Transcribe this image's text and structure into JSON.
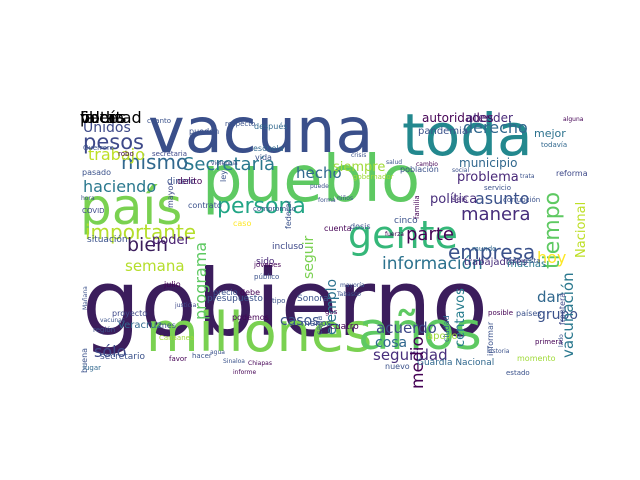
{
  "wordcloud": {
    "words": [
      {
        "text": "gobierno",
        "color": "#3b1d5c"
      },
      {
        "text": "vacuna",
        "color": "#3a4f8a"
      },
      {
        "text": "pueblo",
        "color": "#5ec962"
      },
      {
        "text": "país",
        "color": "#7ad151"
      },
      {
        "text": "toda",
        "color": "#23888e"
      },
      {
        "text": "gente",
        "color": "#35b779"
      },
      {
        "text": "millones",
        "color": "#7ad151"
      },
      {
        "text": "años",
        "color": "#5ec962"
      },
      {
        "text": "persona",
        "color": "#21a585"
      },
      {
        "text": "Secretaría",
        "color": "#2a788e"
      },
      {
        "text": "importante",
        "color": "#b5de2b"
      },
      {
        "text": "parte",
        "color": "#440154"
      },
      {
        "text": "empresa",
        "color": "#3b528b"
      },
      {
        "text": "información",
        "color": "#2c728e"
      },
      {
        "text": "tiempo",
        "color": "#5ec962"
      },
      {
        "text": "mismo",
        "color": "#31688e"
      },
      {
        "text": "pesos",
        "color": "#3e4989"
      },
      {
        "text": "trabajo",
        "color": "#bddf26"
      },
      {
        "text": "haciendo",
        "color": "#2a788e"
      },
      {
        "text": "derecho",
        "color": "#31688e"
      },
      {
        "text": "manera",
        "color": "#472d7b"
      },
      {
        "text": "problema",
        "color": "#482878"
      },
      {
        "text": "bien",
        "color": "#3b1d5c"
      },
      {
        "text": "poder",
        "color": "#481f70"
      },
      {
        "text": "semana",
        "color": "#b5de2b"
      },
      {
        "text": "hecho",
        "color": "#31688e"
      },
      {
        "text": "Unidos",
        "color": "#3e4a89"
      },
      {
        "text": "programa",
        "color": "#5ec962"
      },
      {
        "text": "seguir",
        "color": "#7ad151"
      },
      {
        "text": "acuerdo",
        "color": "#3e4989"
      },
      {
        "text": "cosa",
        "color": "#31688e"
      },
      {
        "text": "seguridad",
        "color": "#472d7b"
      },
      {
        "text": "sólo",
        "color": "#3e4989"
      },
      {
        "text": "casos",
        "color": "#3b528b"
      },
      {
        "text": "ejemplo",
        "color": "#2c728e"
      },
      {
        "text": "medio",
        "color": "#440154"
      },
      {
        "text": "hoy",
        "color": "#fde725"
      },
      {
        "text": "dar",
        "color": "#31688e"
      },
      {
        "text": "grupo",
        "color": "#3b528b"
      },
      {
        "text": "vacunación",
        "color": "#2a788e"
      },
      {
        "text": "Nacional",
        "color": "#bddf26"
      },
      {
        "text": "asunto",
        "color": "#3b528b"
      },
      {
        "text": "siempre",
        "color": "#a0da39"
      },
      {
        "text": "política",
        "color": "#472d7b"
      },
      {
        "text": "centavos",
        "color": "#287d8e"
      },
      {
        "text": "municipio",
        "color": "#31688e"
      },
      {
        "text": "mejor",
        "color": "#2c728e"
      },
      {
        "text": "autoridades",
        "color": "#440154"
      },
      {
        "text": "atender",
        "color": "#482878"
      },
      {
        "text": "pandemia",
        "color": "#3b528b"
      },
      {
        "text": "Veracruz",
        "color": "#31688e"
      },
      {
        "text": "trabajadores",
        "color": "#472d7b"
      },
      {
        "text": "apoyo",
        "color": "#a0da39"
      },
      {
        "text": "Guardia Nacional",
        "color": "#31688e"
      },
      {
        "text": "secretario",
        "color": "#3b528b"
      },
      {
        "text": "proyecto",
        "color": "#3e4989"
      },
      {
        "text": "situación",
        "color": "#3b528b"
      },
      {
        "text": "sido",
        "color": "#482878"
      },
      {
        "text": "incluso",
        "color": "#3e4989"
      },
      {
        "text": "dinero",
        "color": "#3b528b"
      },
      {
        "text": "Sonora",
        "color": "#3b528b"
      },
      {
        "text": "muchas",
        "color": "#2a788e"
      },
      {
        "text": "cuatro",
        "color": "#440154"
      },
      {
        "text": "cinco",
        "color": "#3b528b"
      },
      {
        "text": "seis",
        "color": "#482878"
      },
      {
        "text": "menos",
        "color": "#3b528b"
      },
      {
        "text": "pasado",
        "color": "#3b528b"
      },
      {
        "text": "escuela",
        "color": "#31688e"
      },
      {
        "text": "vida",
        "color": "#3b528b"
      },
      {
        "text": "después",
        "color": "#31688e"
      },
      {
        "text": "pueden",
        "color": "#3b528b"
      },
      {
        "text": "mayor",
        "color": "#3e4989"
      },
      {
        "text": "delito",
        "color": "#440154"
      },
      {
        "text": "contrato",
        "color": "#3b528b"
      },
      {
        "text": "precio",
        "color": "#3b528b"
      },
      {
        "text": "julio",
        "color": "#440154"
      },
      {
        "text": "jóvenes",
        "color": "#440154"
      },
      {
        "text": "debe",
        "color": "#440154"
      },
      {
        "text": "público",
        "color": "#3b528b"
      },
      {
        "text": "podemos",
        "color": "#440154"
      },
      {
        "text": "mes",
        "color": "#3b528b"
      },
      {
        "text": "reforma",
        "color": "#3e4989"
      },
      {
        "text": "frontera",
        "color": "#3e4989"
      },
      {
        "text": "primera",
        "color": "#440154"
      },
      {
        "text": "países",
        "color": "#3b528b"
      },
      {
        "text": "momento",
        "color": "#a0da39"
      },
      {
        "text": "nuevo",
        "color": "#3b528b"
      },
      {
        "text": "informar",
        "color": "#3b528b"
      },
      {
        "text": "dosis",
        "color": "#3b528b"
      },
      {
        "text": "cuenta",
        "color": "#440154"
      },
      {
        "text": "ciudad",
        "color": "#31688e"
      },
      {
        "text": "federal",
        "color": "#3b528b"
      },
      {
        "text": "familia",
        "color": "#440154"
      },
      {
        "text": "gobernador",
        "color": "#a0da39"
      },
      {
        "text": "población",
        "color": "#3b528b"
      },
      {
        "text": "todavía",
        "color": "#31688e"
      },
      {
        "text": "servicio",
        "color": "#3b528b"
      },
      {
        "text": "corrupción",
        "color": "#3b528b"
      },
      {
        "text": "respuesta",
        "color": "#3b528b"
      },
      {
        "text": "mundo",
        "color": "#31688e"
      },
      {
        "text": "buena",
        "color": "#3b528b"
      },
      {
        "text": "lugar",
        "color": "#31688e"
      },
      {
        "text": "presupuesto",
        "color": "#3b528b"
      },
      {
        "text": "caso",
        "color": "#fde725"
      },
      {
        "text": "gas",
        "color": "#440154"
      },
      {
        "text": "cada",
        "color": "#3b528b"
      },
      {
        "text": "COVID",
        "color": "#3e4989"
      },
      {
        "text": "tipo",
        "color": "#3b528b"
      },
      {
        "text": "compromiso",
        "color": "#3b528b"
      },
      {
        "text": "Guerrero",
        "color": "#3b528b"
      },
      {
        "text": "secretaria",
        "color": "#3e4989"
      },
      {
        "text": "respecto",
        "color": "#3b528b"
      },
      {
        "text": "cuanto",
        "color": "#3b528b"
      },
      {
        "text": "alguna",
        "color": "#440154"
      },
      {
        "text": "ley",
        "color": "#3b528b"
      },
      {
        "text": "robo",
        "color": "#440154"
      },
      {
        "text": "violencia",
        "color": "#3e4989"
      },
      {
        "text": "crisis",
        "color": "#3b528b"
      },
      {
        "text": "fuerza",
        "color": "#440154"
      },
      {
        "text": "salud",
        "color": "#3b528b"
      },
      {
        "text": "cambio",
        "color": "#440154"
      },
      {
        "text": "estado",
        "color": "#3b528b"
      },
      {
        "text": "favor",
        "color": "#440154"
      },
      {
        "text": "hacer",
        "color": "#3b528b"
      },
      {
        "text": "Chiapas",
        "color": "#440154"
      },
      {
        "text": "posible",
        "color": "#440154"
      },
      {
        "text": "Tabasco",
        "color": "#3b528b"
      },
      {
        "text": "Canaanea",
        "color": "#a0da39"
      },
      {
        "text": "justicia",
        "color": "#3e4989"
      },
      {
        "text": "informe",
        "color": "#440154"
      },
      {
        "text": "agua",
        "color": "#3b528b"
      },
      {
        "text": "Sinaloa",
        "color": "#3b528b"
      },
      {
        "text": "mayoría",
        "color": "#3b528b"
      },
      {
        "text": "región",
        "color": "#3b528b"
      },
      {
        "text": "forma",
        "color": "#3b528b"
      },
      {
        "text": "puede",
        "color": "#3b528b"
      },
      {
        "text": "niños",
        "color": "#3b528b"
      },
      {
        "text": "social",
        "color": "#3b528b"
      },
      {
        "text": "trata",
        "color": "#3b528b"
      },
      {
        "text": "hora",
        "color": "#3b528b"
      },
      {
        "text": "vacunas",
        "color": "#3b528b"
      },
      {
        "text": "lado",
        "color": "#3b528b"
      },
      {
        "text": "historia",
        "color": "#3b528b"
      },
      {
        "text": "Mañana",
        "color": "#3b528b"
      },
      {
        "text": "veces",
        "color": "#3b528b"
      },
      {
        "text": "falta",
        "color": "#3b528b"
      },
      {
        "text": "podía",
        "color": "#3b528b"
      },
      {
        "text": "libertad",
        "color": "#3b528b"
      }
    ]
  }
}
